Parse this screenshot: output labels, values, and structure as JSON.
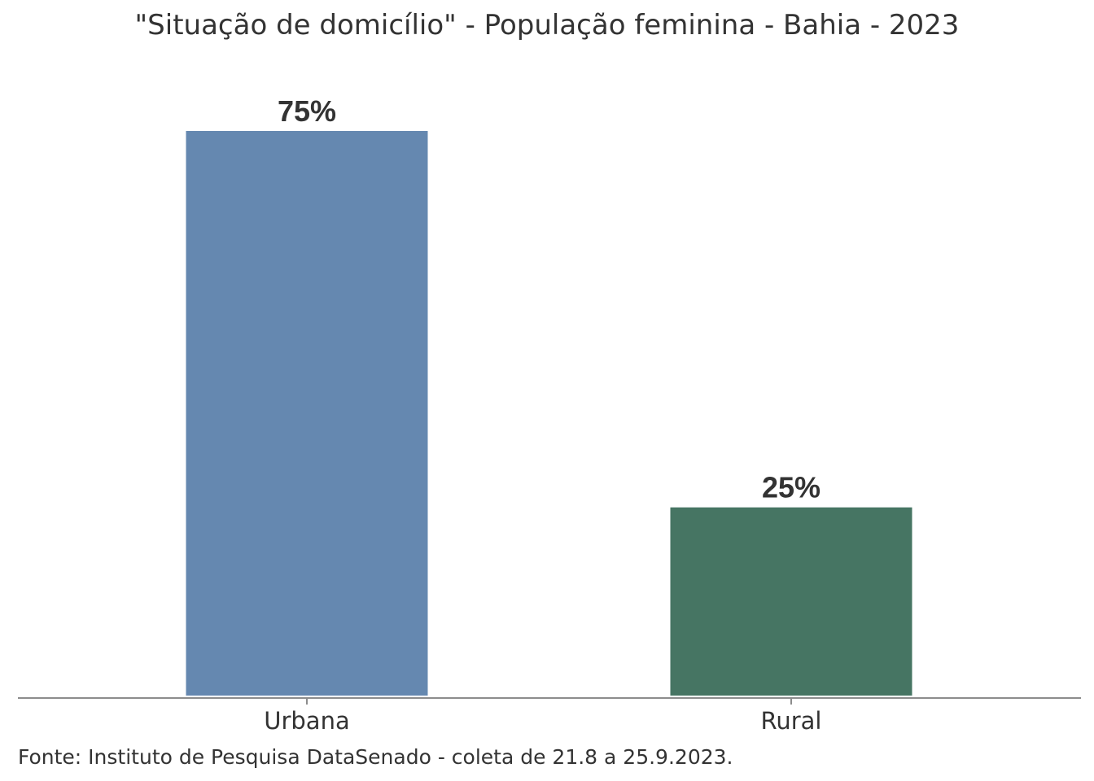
{
  "chart_data": {
    "type": "bar",
    "title": "\"Situação de domicílio\" - População feminina - Bahia - 2023",
    "categories": [
      "Urbana",
      "Rural"
    ],
    "values": [
      75,
      25
    ],
    "value_labels": [
      "75%",
      "25%"
    ],
    "colors": [
      "#6588B0",
      "#467563"
    ],
    "ylim": [
      0,
      75
    ],
    "grid": false,
    "legend": "none",
    "xlabel": "",
    "ylabel": "",
    "source": "Fonte: Instituto de Pesquisa DataSenado - coleta de 21.8 a 25.9.2023."
  }
}
